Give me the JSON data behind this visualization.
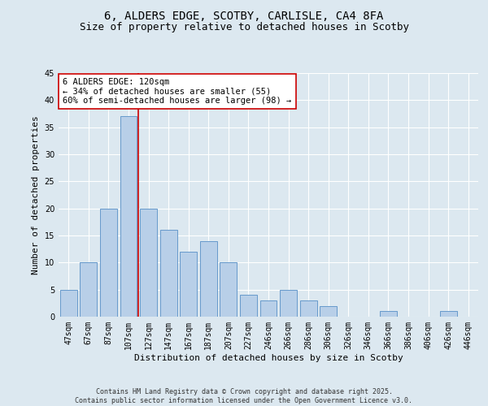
{
  "title1": "6, ALDERS EDGE, SCOTBY, CARLISLE, CA4 8FA",
  "title2": "Size of property relative to detached houses in Scotby",
  "xlabel": "Distribution of detached houses by size in Scotby",
  "ylabel": "Number of detached properties",
  "categories": [
    "47sqm",
    "67sqm",
    "87sqm",
    "107sqm",
    "127sqm",
    "147sqm",
    "167sqm",
    "187sqm",
    "207sqm",
    "227sqm",
    "246sqm",
    "266sqm",
    "286sqm",
    "306sqm",
    "326sqm",
    "346sqm",
    "366sqm",
    "386sqm",
    "406sqm",
    "426sqm",
    "446sqm"
  ],
  "values": [
    5,
    10,
    20,
    37,
    20,
    16,
    12,
    14,
    10,
    4,
    3,
    5,
    3,
    2,
    0,
    0,
    1,
    0,
    0,
    1,
    0
  ],
  "bar_color": "#b8cfe8",
  "bar_edge_color": "#6699cc",
  "background_color": "#dce8f0",
  "grid_color": "#ffffff",
  "vline_x": 3.5,
  "vline_color": "#cc0000",
  "annotation_text": "6 ALDERS EDGE: 120sqm\n← 34% of detached houses are smaller (55)\n60% of semi-detached houses are larger (98) →",
  "annotation_box_color": "#ffffff",
  "annotation_box_edge": "#cc0000",
  "ylim": [
    0,
    45
  ],
  "yticks": [
    0,
    5,
    10,
    15,
    20,
    25,
    30,
    35,
    40,
    45
  ],
  "footer": "Contains HM Land Registry data © Crown copyright and database right 2025.\nContains public sector information licensed under the Open Government Licence v3.0.",
  "title_fontsize": 10,
  "subtitle_fontsize": 9,
  "axis_label_fontsize": 8,
  "tick_fontsize": 7,
  "annotation_fontsize": 7.5,
  "footer_fontsize": 6
}
